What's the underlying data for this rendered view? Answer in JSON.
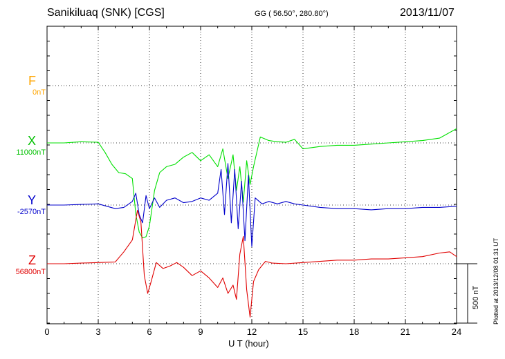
{
  "chart_data": {
    "type": "line",
    "title": "Sanikiluaq (SNK)  [CGS]",
    "coordinates": "GG ( 56.50°, 280.80°)",
    "date": "2013/11/07",
    "xlabel": "U T (hour)",
    "xlim": [
      0,
      24
    ],
    "xticks": [
      "0",
      "3",
      "6",
      "9",
      "12",
      "15",
      "18",
      "21",
      "24"
    ],
    "grid": true,
    "scale_bar": "500 nT",
    "plotted_note": "Plotted at 2013/12/08 01:31  UT",
    "colors": {
      "F": "#ffa500",
      "X": "#00e000",
      "Y": "#0000cc",
      "Z": "#e00000"
    },
    "series": [
      {
        "name": "F",
        "baseline": "0nT",
        "x": [],
        "y": []
      },
      {
        "name": "X",
        "baseline": "11000nT",
        "x": [
          0,
          1,
          2,
          3,
          3.4,
          3.8,
          4.2,
          4.6,
          5.0,
          5.2,
          5.4,
          5.6,
          5.8,
          6.0,
          6.3,
          6.6,
          7.0,
          7.5,
          8.0,
          8.5,
          9.0,
          9.5,
          10.0,
          10.3,
          10.6,
          10.9,
          11.1,
          11.3,
          11.5,
          11.7,
          11.9,
          12.1,
          12.5,
          13.0,
          13.5,
          14.0,
          14.5,
          15.0,
          16,
          17,
          18,
          19,
          20,
          21,
          22,
          23,
          24
        ],
        "y": [
          0,
          0,
          10,
          5,
          -80,
          -180,
          -250,
          -260,
          -300,
          -600,
          -750,
          -800,
          -790,
          -700,
          -400,
          -250,
          -200,
          -180,
          -120,
          -80,
          -150,
          -100,
          -200,
          -50,
          -300,
          -100,
          -400,
          -200,
          -500,
          -150,
          -350,
          -200,
          50,
          20,
          10,
          5,
          30,
          -50,
          -30,
          -20,
          -20,
          -10,
          0,
          10,
          20,
          40,
          120
        ]
      },
      {
        "name": "Y",
        "baseline": "-2570nT",
        "x": [
          0,
          1,
          2,
          3,
          4,
          4.5,
          5.0,
          5.2,
          5.4,
          5.6,
          5.8,
          6.0,
          6.3,
          6.6,
          7.0,
          7.5,
          8.0,
          8.5,
          9.0,
          9.5,
          10.0,
          10.2,
          10.4,
          10.6,
          10.8,
          11.0,
          11.2,
          11.4,
          11.6,
          11.8,
          12.0,
          12.2,
          12.6,
          13.0,
          13.5,
          14.0,
          14.5,
          15,
          16,
          17,
          18,
          19,
          20,
          21,
          22,
          23,
          24
        ],
        "y": [
          0,
          0,
          5,
          10,
          -30,
          -20,
          30,
          100,
          -80,
          -150,
          80,
          -30,
          60,
          -20,
          40,
          60,
          20,
          30,
          60,
          40,
          100,
          300,
          -80,
          350,
          -150,
          300,
          -200,
          200,
          -300,
          250,
          -350,
          60,
          10,
          30,
          10,
          30,
          10,
          0,
          -20,
          -30,
          -30,
          -40,
          -30,
          -30,
          -20,
          -20,
          -10
        ]
      },
      {
        "name": "Z",
        "baseline": "56800nT",
        "x": [
          0,
          1,
          2,
          3,
          4,
          4.5,
          5.0,
          5.3,
          5.5,
          5.7,
          5.9,
          6.1,
          6.4,
          6.8,
          7.2,
          7.6,
          8.0,
          8.5,
          9.0,
          9.5,
          10.0,
          10.3,
          10.6,
          10.9,
          11.1,
          11.3,
          11.5,
          11.7,
          11.9,
          12.1,
          12.4,
          12.8,
          13.2,
          14,
          15,
          16,
          17,
          18,
          19,
          20,
          21,
          22,
          23,
          23.6,
          24
        ],
        "y": [
          0,
          0,
          5,
          10,
          15,
          100,
          200,
          450,
          350,
          -100,
          -250,
          -150,
          10,
          -40,
          -20,
          10,
          -30,
          -100,
          -60,
          -120,
          -200,
          -120,
          -250,
          -180,
          -300,
          80,
          230,
          -220,
          -450,
          -150,
          -50,
          20,
          5,
          0,
          10,
          20,
          30,
          30,
          40,
          40,
          50,
          60,
          90,
          100,
          60
        ]
      }
    ]
  }
}
